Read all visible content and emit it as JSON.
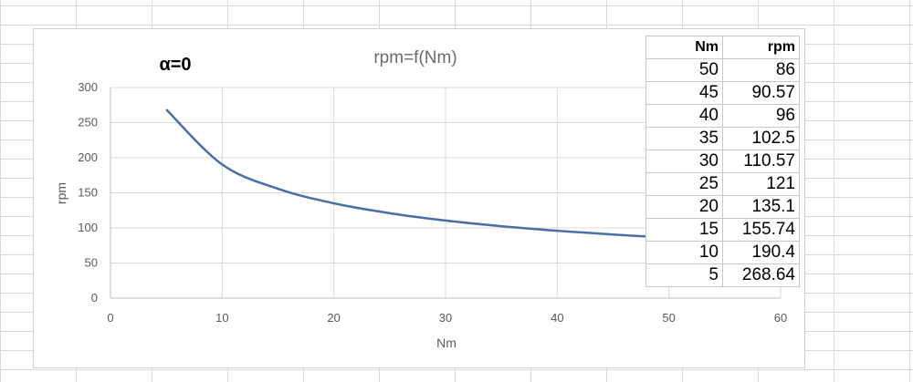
{
  "annotation": "α=0",
  "chart_data": {
    "type": "line",
    "title": "rpm=f(Nm)",
    "xlabel": "Nm",
    "ylabel": "rpm",
    "xlim": [
      0,
      60
    ],
    "ylim": [
      0,
      300
    ],
    "x_ticks": [
      0,
      10,
      20,
      30,
      40,
      50,
      60
    ],
    "y_ticks": [
      0,
      50,
      100,
      150,
      200,
      250,
      300
    ],
    "grid": true,
    "legend": "none",
    "series": [
      {
        "color": "#4a6fa5",
        "x": [
          5,
          10,
          15,
          20,
          25,
          30,
          35,
          40,
          45,
          50
        ],
        "y": [
          268.64,
          190.4,
          155.74,
          135.1,
          121,
          110.57,
          102.5,
          96,
          90.57,
          86
        ]
      }
    ]
  },
  "table": {
    "headers": [
      "Nm",
      "rpm"
    ],
    "rows": [
      [
        "50",
        "86"
      ],
      [
        "45",
        "90.57"
      ],
      [
        "40",
        "96"
      ],
      [
        "35",
        "102.5"
      ],
      [
        "30",
        "110.57"
      ],
      [
        "25",
        "121"
      ],
      [
        "20",
        "135.1"
      ],
      [
        "15",
        "155.74"
      ],
      [
        "10",
        "190.4"
      ],
      [
        "5",
        "268.64"
      ]
    ]
  }
}
